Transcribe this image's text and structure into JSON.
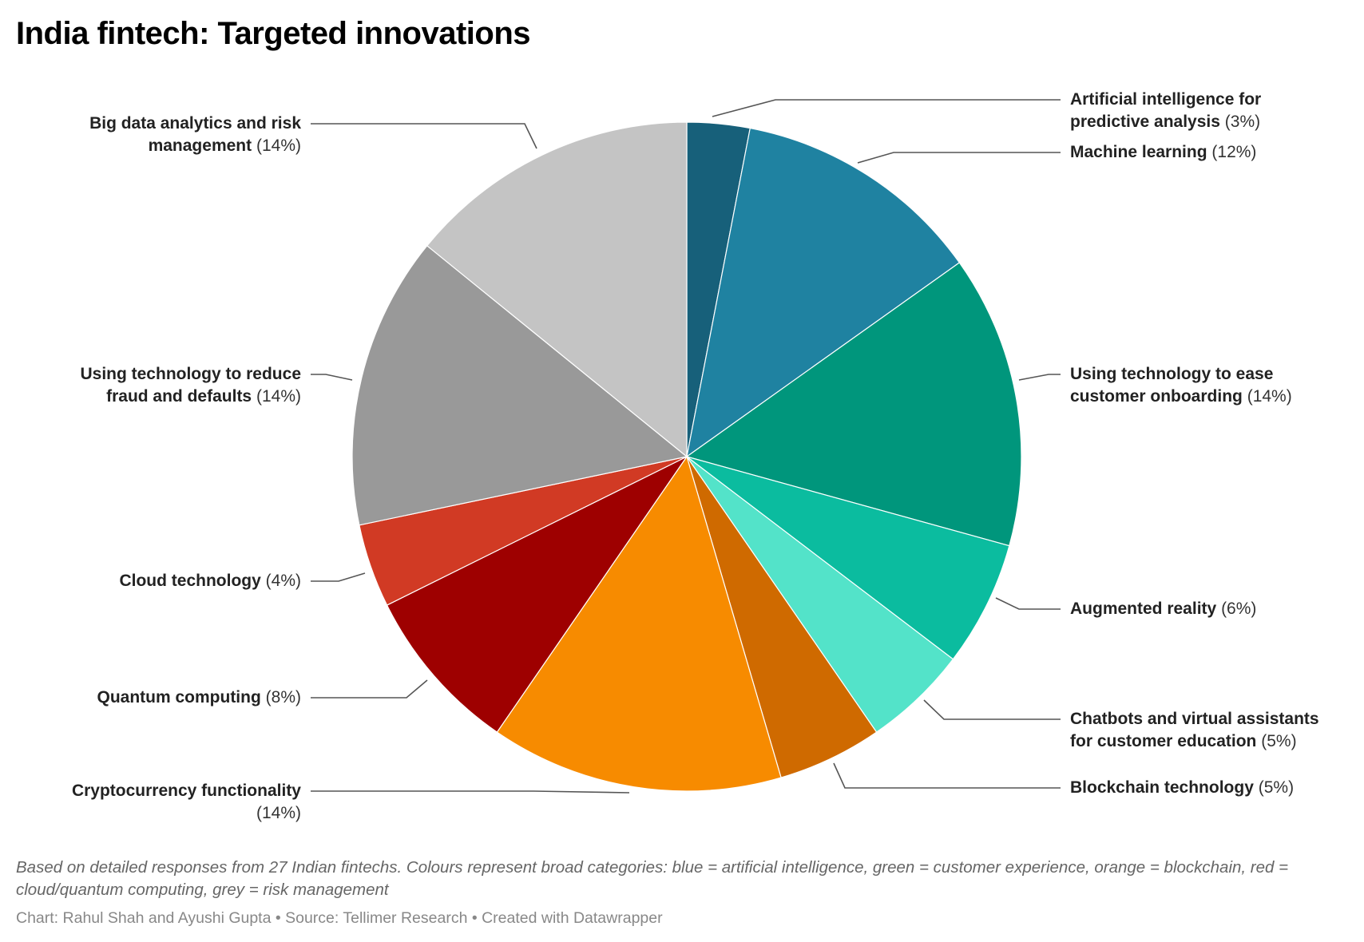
{
  "title": "India fintech: Targeted innovations",
  "notes": "Based on detailed responses from 27 Indian fintechs. Colours represent broad categories: blue = artificial intelligence, green = customer experience, orange = blockchain, red = cloud/quantum computing, grey = risk management",
  "credit": "Chart: Rahul Shah and Ayushi Gupta • Source: Tellimer Research • Created with Datawrapper",
  "chart_data": {
    "type": "pie",
    "title": "India fintech: Targeted innovations",
    "order": "clockwise from top",
    "slices": [
      {
        "label": "Artificial intelligence for predictive analysis",
        "lines": [
          "Artificial intelligence for",
          "predictive analysis"
        ],
        "value": 3,
        "pct_label": "(3%)",
        "color": "#17607a",
        "side": "right"
      },
      {
        "label": "Machine learning",
        "lines": [
          "Machine learning"
        ],
        "value": 12,
        "pct_label": "(12%)",
        "color": "#1f82a1",
        "side": "right"
      },
      {
        "label": "Using technology to ease customer onboarding",
        "lines": [
          "Using technology to ease",
          "customer onboarding"
        ],
        "value": 14,
        "pct_label": "(14%)",
        "color": "#00967c",
        "side": "right"
      },
      {
        "label": "Augmented reality",
        "lines": [
          "Augmented reality"
        ],
        "value": 6,
        "pct_label": "(6%)",
        "color": "#0bbc9f",
        "side": "right"
      },
      {
        "label": "Chatbots and virtual assistants for customer education",
        "lines": [
          "Chatbots and virtual assistants",
          "for customer education"
        ],
        "value": 5,
        "pct_label": "(5%)",
        "color": "#53e3c9",
        "side": "right"
      },
      {
        "label": "Blockchain technology",
        "lines": [
          "Blockchain technology"
        ],
        "value": 5,
        "pct_label": "(5%)",
        "color": "#cf6a00",
        "side": "right"
      },
      {
        "label": "Cryptocurrency functionality",
        "lines": [
          "Cryptocurrency functionality",
          ""
        ],
        "value": 14,
        "pct_label": "(14%)",
        "color": "#f78b00",
        "side": "left"
      },
      {
        "label": "Quantum computing",
        "lines": [
          "Quantum computing"
        ],
        "value": 8,
        "pct_label": "(8%)",
        "color": "#9e0000",
        "side": "left"
      },
      {
        "label": "Cloud technology",
        "lines": [
          "Cloud technology"
        ],
        "value": 4,
        "pct_label": "(4%)",
        "color": "#d13a24",
        "side": "left"
      },
      {
        "label": "Using technology to reduce fraud and defaults",
        "lines": [
          "Using technology to reduce",
          "fraud and defaults"
        ],
        "value": 14,
        "pct_label": "(14%)",
        "color": "#999999",
        "side": "left"
      },
      {
        "label": "Big data analytics and risk management",
        "lines": [
          "Big data analytics and risk",
          "management"
        ],
        "value": 14,
        "pct_label": "(14%)",
        "color": "#c4c4c4",
        "side": "left"
      }
    ]
  }
}
